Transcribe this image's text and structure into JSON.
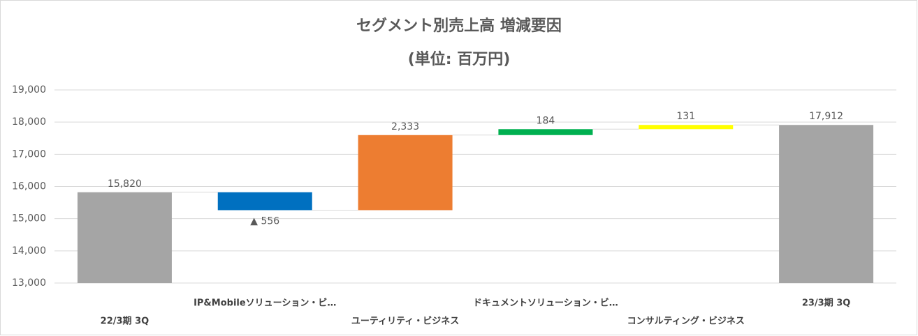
{
  "chart_data": {
    "type": "waterfall",
    "title": "セグメント別売上高 増減要因",
    "subtitle": "(単位: 百万円)",
    "categories": [
      "22/3期 3Q",
      "IP&Mobileソリューション・ビ…",
      "ユーティリティ・ビジネス",
      "ドキュメントソリューション・ビ…",
      "コンサルティング・ビジネス",
      "23/3期 3Q"
    ],
    "values": [
      15820,
      -556,
      2333,
      184,
      131,
      17912
    ],
    "value_labels": [
      "15,820",
      "▲ 556",
      "2,333",
      "184",
      "131",
      "17,912"
    ],
    "colors": [
      "#a5a5a5",
      "#0070c0",
      "#ed7d31",
      "#00b050",
      "#ffff00",
      "#a5a5a5"
    ],
    "ylim": [
      13000,
      19000
    ],
    "yticks": [
      {
        "value": 13000,
        "label": "13,000"
      },
      {
        "value": 14000,
        "label": "14,000"
      },
      {
        "value": 15000,
        "label": "15,000"
      },
      {
        "value": 16000,
        "label": "16,000"
      },
      {
        "value": 17000,
        "label": "17,000"
      },
      {
        "value": 18000,
        "label": "18,000"
      },
      {
        "value": 19000,
        "label": "19,000"
      }
    ],
    "grid": true
  }
}
